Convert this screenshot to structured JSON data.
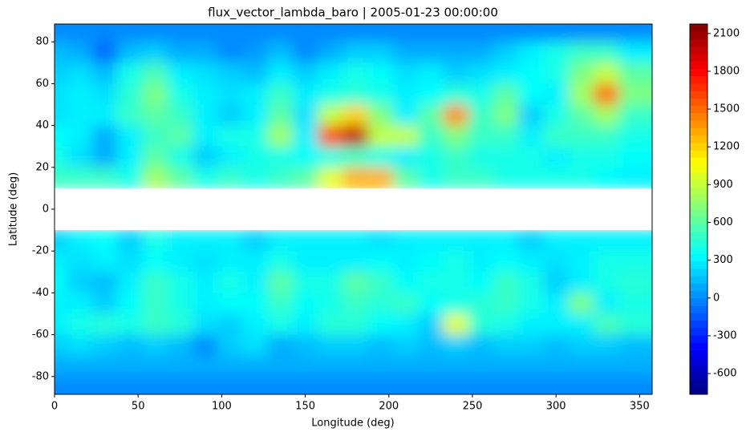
{
  "chart_data": {
    "type": "heatmap",
    "title": "flux_vector_lambda_baro | 2005-01-23 00:00:00",
    "x_label": "Longitude (deg)",
    "y_label": "Latitude (deg)",
    "colormap": "jet",
    "x": [
      0,
      15,
      30,
      45,
      60,
      75,
      90,
      105,
      120,
      135,
      150,
      165,
      180,
      195,
      210,
      225,
      240,
      255,
      270,
      285,
      300,
      315,
      330,
      345
    ],
    "y": [
      85,
      75,
      65,
      55,
      45,
      35,
      25,
      15,
      5,
      -5,
      -15,
      -25,
      -35,
      -45,
      -55,
      -65,
      -75,
      -85
    ],
    "z": [
      [
        0,
        0,
        0,
        0,
        0,
        0,
        0,
        0,
        0,
        0,
        0,
        0,
        0,
        0,
        0,
        0,
        0,
        0,
        0,
        0,
        0,
        0,
        0,
        0
      ],
      [
        150,
        100,
        -100,
        150,
        200,
        100,
        100,
        0,
        50,
        150,
        0,
        100,
        200,
        200,
        100,
        100,
        100,
        100,
        200,
        300,
        400,
        500,
        500,
        300
      ],
      [
        200,
        250,
        150,
        400,
        550,
        300,
        250,
        200,
        150,
        300,
        200,
        300,
        400,
        350,
        250,
        300,
        200,
        250,
        300,
        350,
        400,
        700,
        900,
        600
      ],
      [
        250,
        300,
        250,
        450,
        700,
        400,
        300,
        250,
        300,
        500,
        300,
        400,
        450,
        400,
        300,
        350,
        450,
        400,
        600,
        350,
        300,
        800,
        1500,
        700
      ],
      [
        250,
        300,
        300,
        500,
        600,
        500,
        300,
        200,
        300,
        600,
        250,
        900,
        1200,
        700,
        300,
        600,
        1400,
        500,
        700,
        200,
        400,
        600,
        800,
        500
      ],
      [
        350,
        300,
        100,
        300,
        500,
        600,
        300,
        400,
        400,
        800,
        300,
        1600,
        2000,
        900,
        900,
        500,
        700,
        500,
        500,
        300,
        500,
        500,
        500,
        400
      ],
      [
        400,
        250,
        100,
        300,
        600,
        400,
        200,
        300,
        400,
        400,
        350,
        400,
        500,
        400,
        300,
        400,
        500,
        400,
        400,
        400,
        300,
        400,
        400,
        350
      ],
      [
        500,
        500,
        500,
        400,
        800,
        600,
        400,
        500,
        400,
        500,
        600,
        1000,
        1300,
        1300,
        600,
        400,
        500,
        500,
        400,
        400,
        400,
        400,
        350,
        300
      ],
      [
        null,
        null,
        null,
        null,
        null,
        null,
        null,
        null,
        null,
        null,
        null,
        null,
        null,
        null,
        null,
        null,
        null,
        null,
        null,
        null,
        null,
        null,
        null,
        null
      ],
      [
        null,
        null,
        null,
        null,
        null,
        null,
        null,
        null,
        null,
        null,
        null,
        null,
        null,
        null,
        null,
        null,
        null,
        null,
        null,
        null,
        null,
        null,
        null,
        null
      ],
      [
        200,
        300,
        350,
        200,
        400,
        300,
        300,
        300,
        200,
        300,
        300,
        300,
        300,
        250,
        300,
        300,
        300,
        300,
        300,
        200,
        300,
        300,
        300,
        300
      ],
      [
        300,
        250,
        300,
        250,
        350,
        300,
        250,
        300,
        300,
        400,
        300,
        300,
        300,
        350,
        300,
        350,
        400,
        300,
        350,
        300,
        250,
        300,
        400,
        400
      ],
      [
        350,
        200,
        150,
        300,
        500,
        400,
        300,
        400,
        300,
        600,
        400,
        400,
        600,
        500,
        350,
        400,
        400,
        350,
        500,
        400,
        200,
        300,
        400,
        450
      ],
      [
        300,
        300,
        200,
        350,
        500,
        400,
        300,
        350,
        350,
        500,
        350,
        400,
        500,
        450,
        500,
        350,
        400,
        450,
        500,
        400,
        300,
        700,
        300,
        400
      ],
      [
        300,
        400,
        450,
        400,
        500,
        450,
        250,
        200,
        300,
        400,
        300,
        450,
        450,
        350,
        300,
        200,
        1000,
        450,
        400,
        300,
        300,
        300,
        550,
        450
      ],
      [
        200,
        250,
        200,
        150,
        200,
        150,
        0,
        200,
        250,
        100,
        150,
        200,
        200,
        150,
        200,
        150,
        200,
        150,
        200,
        200,
        150,
        200,
        200,
        150
      ],
      [
        100,
        100,
        100,
        100,
        100,
        100,
        100,
        100,
        100,
        100,
        100,
        100,
        100,
        100,
        100,
        100,
        100,
        100,
        100,
        100,
        100,
        100,
        100,
        100
      ],
      [
        0,
        0,
        0,
        0,
        0,
        0,
        0,
        0,
        0,
        0,
        0,
        0,
        0,
        0,
        0,
        0,
        0,
        0,
        0,
        0,
        0,
        0,
        0,
        0
      ]
    ],
    "xlim": [
      0,
      357.5
    ],
    "ylim": [
      -88.5,
      88.5
    ],
    "xticks": [
      0,
      50,
      100,
      150,
      200,
      250,
      300,
      350
    ],
    "yticks": [
      -80,
      -60,
      -40,
      -20,
      0,
      20,
      40,
      60,
      80
    ],
    "zlim": [
      -765,
      2175
    ],
    "zticks": [
      -600,
      -300,
      0,
      300,
      600,
      900,
      1200,
      1500,
      1800,
      2100
    ]
  }
}
